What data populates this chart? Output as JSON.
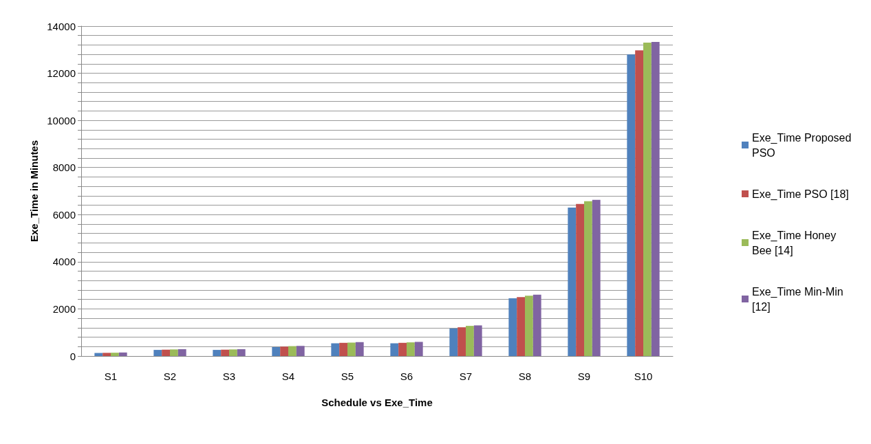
{
  "chart_data": {
    "type": "bar",
    "xlabel": "Schedule vs Exe_Time",
    "ylabel": "Exe_Time in Minutes",
    "categories": [
      "S1",
      "S2",
      "S3",
      "S4",
      "S5",
      "S6",
      "S7",
      "S8",
      "S9",
      "S10"
    ],
    "series": [
      {
        "name": "Exe_Time Proposed PSO",
        "color": "#4f81bd",
        "values": [
          130,
          260,
          260,
          380,
          540,
          540,
          1170,
          2450,
          6300,
          12800
        ]
      },
      {
        "name": "Exe_Time PSO [18]",
        "color": "#c0504d",
        "values": [
          135,
          270,
          270,
          400,
          560,
          560,
          1220,
          2500,
          6450,
          12970
        ]
      },
      {
        "name": "Exe_Time Honey Bee [14]",
        "color": "#9bbb59",
        "values": [
          140,
          280,
          280,
          420,
          570,
          580,
          1280,
          2560,
          6570,
          13300
        ]
      },
      {
        "name": "Exe_Time Min-Min [12]",
        "color": "#8064a2",
        "values": [
          150,
          290,
          290,
          430,
          590,
          600,
          1300,
          2600,
          6630,
          13330
        ]
      }
    ],
    "ylim": [
      0,
      14000
    ],
    "yticks": [
      0,
      {
        "value": 400,
        "label": null
      },
      {
        "value": 800,
        "label": null
      },
      {
        "value": 1200,
        "label": null
      },
      {
        "value": 1600,
        "label": null
      },
      2000,
      {
        "value": 2400,
        "label": null
      },
      {
        "value": 2800,
        "label": null
      },
      {
        "value": 3200,
        "label": null
      },
      {
        "value": 3600,
        "label": null
      },
      4000,
      {
        "value": 4400,
        "label": null
      },
      {
        "value": 4800,
        "label": null
      },
      {
        "value": 5200,
        "label": null
      },
      {
        "value": 5600,
        "label": null
      },
      6000,
      {
        "value": 6400,
        "label": null
      },
      {
        "value": 6800,
        "label": null
      },
      {
        "value": 7200,
        "label": null
      },
      {
        "value": 7600,
        "label": null
      },
      8000,
      {
        "value": 8400,
        "label": null
      },
      {
        "value": 8800,
        "label": null
      },
      {
        "value": 9200,
        "label": null
      },
      {
        "value": 9600,
        "label": null
      },
      10000,
      {
        "value": 10400,
        "label": null
      },
      {
        "value": 10800,
        "label": null
      },
      {
        "value": 11200,
        "label": null
      },
      {
        "value": 11600,
        "label": null
      },
      12000,
      {
        "value": 12400,
        "label": null
      },
      {
        "value": 12800,
        "label": null
      },
      {
        "value": 13200,
        "label": null
      },
      {
        "value": 13600,
        "label": null
      },
      14000
    ],
    "grid": "y",
    "legend": "right"
  }
}
